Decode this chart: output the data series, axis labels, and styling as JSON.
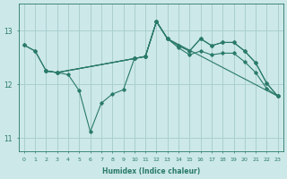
{
  "xlabel": "Humidex (Indice chaleur)",
  "bg_color": "#cce8e8",
  "grid_color": "#aacfcf",
  "line_color": "#2a7a6a",
  "xlim": [
    -0.5,
    23.5
  ],
  "ylim": [
    10.75,
    13.5
  ],
  "yticks": [
    11,
    12,
    13
  ],
  "xticks": [
    0,
    1,
    2,
    3,
    4,
    5,
    6,
    7,
    8,
    9,
    10,
    11,
    12,
    13,
    14,
    15,
    16,
    17,
    18,
    19,
    20,
    21,
    22,
    23
  ],
  "lines": [
    {
      "x": [
        0,
        1,
        2,
        3,
        4,
        5,
        6,
        7,
        8,
        9,
        10,
        11,
        12,
        13,
        14,
        15,
        16,
        17,
        18,
        19,
        20,
        21,
        22,
        23
      ],
      "y": [
        12.73,
        12.62,
        12.25,
        12.22,
        12.18,
        11.88,
        11.12,
        11.65,
        11.82,
        11.9,
        12.48,
        12.52,
        13.17,
        12.85,
        12.72,
        12.62,
        12.85,
        12.72,
        12.78,
        12.78,
        12.62,
        12.4,
        12.02,
        11.78
      ]
    },
    {
      "x": [
        0,
        1,
        2,
        3,
        10,
        11,
        12,
        13,
        14,
        15,
        16,
        17,
        18,
        19,
        20,
        21,
        22,
        23
      ],
      "y": [
        12.73,
        12.62,
        12.25,
        12.22,
        12.48,
        12.52,
        13.17,
        12.85,
        12.72,
        12.62,
        12.85,
        12.72,
        12.78,
        12.78,
        12.62,
        12.4,
        12.02,
        11.78
      ]
    },
    {
      "x": [
        2,
        3,
        10,
        11,
        12,
        13,
        14,
        15,
        16,
        17,
        18,
        19,
        20,
        21,
        22,
        23
      ],
      "y": [
        12.25,
        12.22,
        12.48,
        12.52,
        13.17,
        12.85,
        12.68,
        12.55,
        12.62,
        12.55,
        12.58,
        12.58,
        12.42,
        12.22,
        11.92,
        11.78
      ]
    },
    {
      "x": [
        2,
        3,
        10,
        11,
        12,
        13,
        23
      ],
      "y": [
        12.25,
        12.22,
        12.48,
        12.52,
        13.17,
        12.85,
        11.78
      ]
    }
  ]
}
